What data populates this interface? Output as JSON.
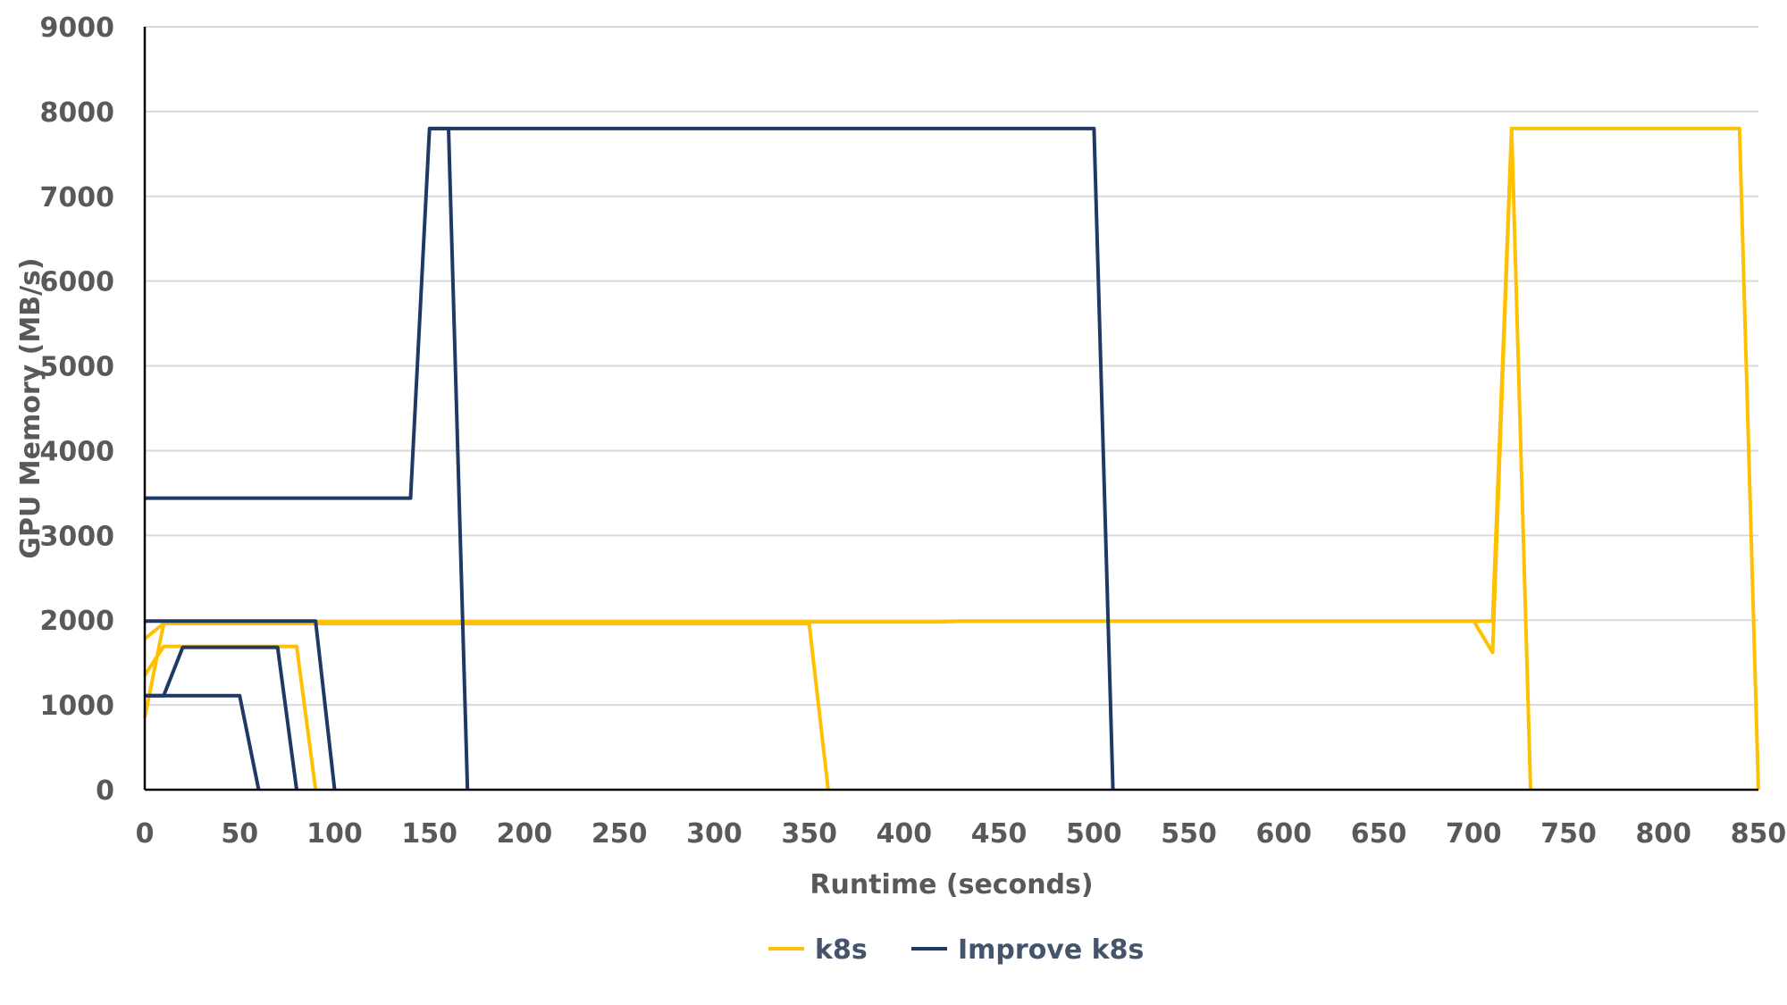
{
  "chart_data": {
    "type": "line",
    "title": "",
    "xlabel": "Runtime (seconds)",
    "ylabel": "GPU Memory (MB/s)",
    "xlim": [
      0,
      850
    ],
    "ylim": [
      0,
      9000
    ],
    "x_ticks": [
      0,
      50,
      100,
      150,
      200,
      250,
      300,
      350,
      400,
      450,
      500,
      550,
      600,
      650,
      700,
      750,
      800,
      850
    ],
    "y_ticks": [
      0,
      1000,
      2000,
      3000,
      4000,
      5000,
      6000,
      7000,
      8000,
      9000
    ],
    "grid": "horizontal",
    "legend_position": "bottom",
    "series": [
      {
        "name": "k8s",
        "color": "#ffc000",
        "segments": [
          [
            [
              0,
              850
            ],
            [
              10,
              1960
            ]
          ],
          [
            [
              0,
              1350
            ],
            [
              10,
              1690
            ],
            [
              80,
              1690
            ],
            [
              90,
              0
            ]
          ],
          [
            [
              0,
              1780
            ],
            [
              10,
              1960
            ],
            [
              350,
              1960
            ],
            [
              360,
              0
            ]
          ],
          [
            [
              90,
              1980
            ],
            [
              420,
              1980
            ],
            [
              430,
              1990
            ],
            [
              700,
              1990
            ],
            [
              710,
              1620
            ],
            [
              720,
              7800
            ],
            [
              840,
              7800
            ],
            [
              850,
              0
            ]
          ],
          [
            [
              700,
              1990
            ],
            [
              710,
              1990
            ],
            [
              720,
              7800
            ],
            [
              730,
              0
            ]
          ]
        ]
      },
      {
        "name": "Improve k8s",
        "color": "#203864",
        "segments": [
          [
            [
              0,
              1110
            ],
            [
              50,
              1110
            ],
            [
              60,
              0
            ]
          ],
          [
            [
              0,
              1110
            ],
            [
              10,
              1110
            ],
            [
              20,
              1680
            ],
            [
              70,
              1680
            ],
            [
              80,
              0
            ]
          ],
          [
            [
              0,
              1990
            ],
            [
              90,
              1990
            ],
            [
              100,
              0
            ]
          ],
          [
            [
              0,
              3440
            ],
            [
              140,
              3440
            ],
            [
              150,
              7800
            ],
            [
              160,
              7800
            ],
            [
              170,
              0
            ]
          ],
          [
            [
              150,
              7800
            ],
            [
              500,
              7800
            ],
            [
              510,
              0
            ]
          ]
        ]
      }
    ]
  }
}
